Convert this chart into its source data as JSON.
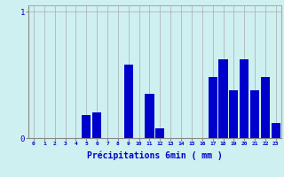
{
  "hours": [
    0,
    1,
    2,
    3,
    4,
    5,
    6,
    7,
    8,
    9,
    10,
    11,
    12,
    13,
    14,
    15,
    16,
    17,
    18,
    19,
    20,
    21,
    22,
    23
  ],
  "values": [
    0,
    0,
    0,
    0,
    0,
    0.18,
    0.2,
    0,
    0,
    0.58,
    0,
    0.35,
    0.08,
    0,
    0,
    0,
    0,
    0.48,
    0.62,
    0.38,
    0.62,
    0.38,
    0.48,
    0.12
  ],
  "bar_color": "#0000cc",
  "background_color": "#cff0f0",
  "grid_color": "#aaaaaa",
  "xlabel": "Précipitations 6min ( mm )",
  "xlabel_color": "#0000cc",
  "ylim": [
    0,
    1.05
  ],
  "xlim": [
    -0.5,
    23.5
  ],
  "tick_color": "#0000cc",
  "axis_color": "#888888",
  "figwidth": 3.2,
  "figheight": 2.0,
  "dpi": 100
}
